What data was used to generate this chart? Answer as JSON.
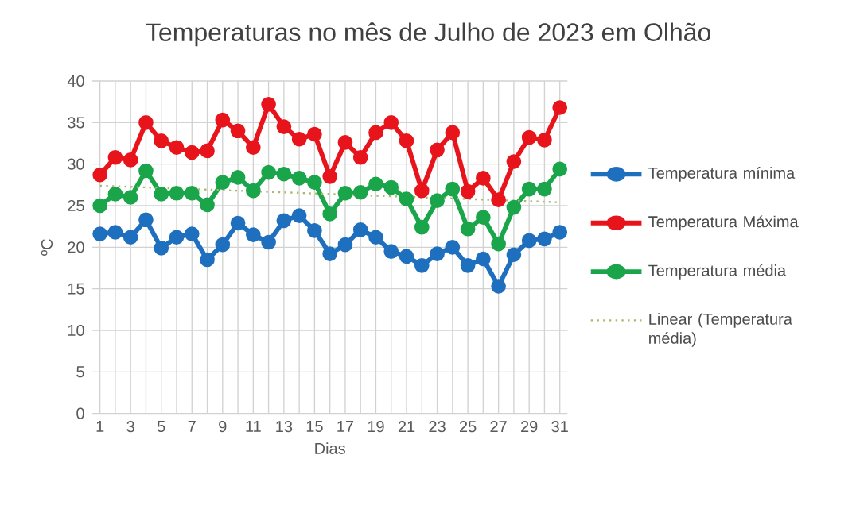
{
  "chart_data": {
    "type": "line",
    "title": "Temperaturas no mês de Julho de 2023 em Olhão",
    "xlabel": "Dias",
    "ylabel": "ºC",
    "x": [
      1,
      2,
      3,
      4,
      5,
      6,
      7,
      8,
      9,
      10,
      11,
      12,
      13,
      14,
      15,
      16,
      17,
      18,
      19,
      20,
      21,
      22,
      23,
      24,
      25,
      26,
      27,
      28,
      29,
      30,
      31
    ],
    "xlim": [
      0.5,
      31.5
    ],
    "ylim": [
      0,
      40
    ],
    "yticks": [
      0,
      5,
      10,
      15,
      20,
      25,
      30,
      35,
      40
    ],
    "xticks": [
      1,
      {
        "value": 2,
        "label": null
      },
      3,
      {
        "value": 4,
        "label": null
      },
      5,
      {
        "value": 6,
        "label": null
      },
      7,
      {
        "value": 8,
        "label": null
      },
      9,
      {
        "value": 10,
        "label": null
      },
      11,
      {
        "value": 12,
        "label": null
      },
      13,
      {
        "value": 14,
        "label": null
      },
      15,
      {
        "value": 16,
        "label": null
      },
      17,
      {
        "value": 18,
        "label": null
      },
      19,
      {
        "value": 20,
        "label": null
      },
      21,
      {
        "value": 22,
        "label": null
      },
      23,
      {
        "value": 24,
        "label": null
      },
      25,
      {
        "value": 26,
        "label": null
      },
      27,
      {
        "value": 28,
        "label": null
      },
      29,
      {
        "value": 30,
        "label": null
      },
      31
    ],
    "grid": true,
    "legend": "right",
    "marker": "circle",
    "line_style": "solid",
    "series": [
      {
        "name": "Temperatura mínima",
        "color": "#1f6fbf",
        "values": [
          21.6,
          21.8,
          21.2,
          23.3,
          19.9,
          21.2,
          21.6,
          18.5,
          20.3,
          22.9,
          21.5,
          20.6,
          23.2,
          23.8,
          22.0,
          19.2,
          20.3,
          22.1,
          21.2,
          19.5,
          18.9,
          17.8,
          19.2,
          20.0,
          17.8,
          18.6,
          15.3,
          19.1,
          20.8,
          21.0,
          21.8
        ]
      },
      {
        "name": "Temperatura Máxima",
        "color": "#e8141b",
        "values": [
          28.7,
          30.8,
          30.5,
          35.0,
          32.8,
          32.0,
          31.4,
          31.6,
          35.3,
          34.0,
          32.0,
          37.2,
          34.5,
          33.0,
          33.6,
          28.5,
          32.6,
          30.8,
          33.8,
          35.0,
          32.8,
          26.8,
          31.7,
          33.8,
          26.7,
          28.3,
          25.7,
          30.3,
          33.2,
          32.9,
          36.8
        ]
      },
      {
        "name": "Temperatura média",
        "color": "#1aa54b",
        "values": [
          25.0,
          26.4,
          26.0,
          29.2,
          26.4,
          26.5,
          26.5,
          25.1,
          27.8,
          28.4,
          26.8,
          29.0,
          28.8,
          28.3,
          27.8,
          24.0,
          26.5,
          26.6,
          27.6,
          27.2,
          25.8,
          22.4,
          25.6,
          27.0,
          22.2,
          23.6,
          20.4,
          24.8,
          27.0,
          27.0,
          29.4
        ]
      },
      {
        "name": "Linear (Temperatura média)",
        "color": "#a9b96a",
        "x": [
          1,
          31
        ],
        "values": [
          27.4,
          25.4
        ],
        "marker": "none",
        "line_style": "dotted"
      }
    ]
  }
}
